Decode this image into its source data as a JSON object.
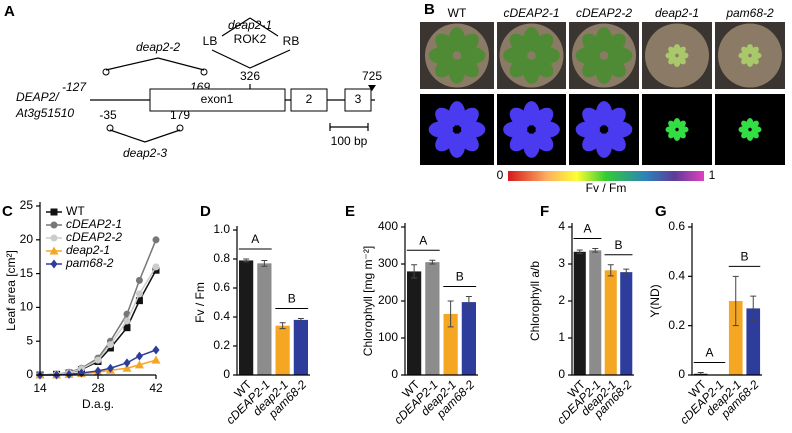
{
  "panel_a": {
    "label": "A",
    "allele_1": "deap2-1",
    "lb": "LB",
    "insert": "ROK2",
    "rb": "RB",
    "allele_2": "deap2-2",
    "pos_start": "-127",
    "pos_169": "169",
    "pos_326": "326",
    "pos_725": "725",
    "gene": "DEAP2/",
    "locus": "At3g51510",
    "exon1": "exon1",
    "exon2": "2",
    "exon3": "3",
    "pos_minus35": "-35",
    "pos_179": "179",
    "allele_3": "deap2-3",
    "scale": "100 bp"
  },
  "panel_b": {
    "label": "B",
    "genotypes": [
      "WT",
      "cDEAP2-1",
      "cDEAP2-2",
      "deap2-1",
      "pam68-2"
    ],
    "colorbar_min": "0",
    "colorbar_label": "Fv / Fm",
    "colorbar_max": "1"
  },
  "chart_data": [
    {
      "type": "line",
      "panel": "C",
      "xlabel": "D.a.g.",
      "ylabel": "Leaf area [cm²]",
      "x": [
        14,
        18,
        21,
        24,
        28,
        31,
        35,
        38,
        42
      ],
      "xlim": [
        14,
        42
      ],
      "xticks": [
        14,
        28,
        42
      ],
      "ylim": [
        0,
        25
      ],
      "yticks": [
        0,
        5,
        10,
        15,
        20,
        25
      ],
      "series": [
        {
          "name": "WT",
          "color": "#111111",
          "marker": "square",
          "values": [
            0,
            0.1,
            0.3,
            0.8,
            2,
            4,
            7,
            11,
            15.5
          ]
        },
        {
          "name": "cDEAP2-1",
          "color": "#777777",
          "marker": "circle",
          "values": [
            0,
            0.1,
            0.4,
            1,
            2.5,
            5,
            9,
            14,
            20
          ]
        },
        {
          "name": "cDEAP2-2",
          "color": "#cccccc",
          "marker": "circle",
          "values": [
            0,
            0.1,
            0.3,
            0.9,
            2.2,
            4.5,
            8,
            12,
            16
          ]
        },
        {
          "name": "deap2-1",
          "color": "#f5a623",
          "marker": "triangle",
          "values": [
            0,
            0,
            0.1,
            0.2,
            0.4,
            0.7,
            1,
            1.5,
            2.2
          ]
        },
        {
          "name": "pam68-2",
          "color": "#2e3d9c",
          "marker": "diamond",
          "values": [
            0,
            0,
            0.1,
            0.3,
            0.6,
            1,
            1.8,
            2.8,
            3.7
          ]
        }
      ]
    },
    {
      "type": "bar",
      "panel": "D",
      "ylabel": "Fv / Fm",
      "categories": [
        "WT",
        "cDEAP2-1",
        "deap2-1",
        "pam68-2"
      ],
      "values": [
        0.79,
        0.77,
        0.34,
        0.38
      ],
      "errors": [
        0.01,
        0.02,
        0.02,
        0.01
      ],
      "colors": [
        "#1a1a1a",
        "#8c8c8c",
        "#f5a623",
        "#2e3d9c"
      ],
      "ylim": [
        0,
        1
      ],
      "yticks": [
        0,
        0.2,
        0.4,
        0.6,
        0.8,
        {
          "value": 1,
          "label": "1.0"
        }
      ],
      "annotations": [
        "A",
        "B"
      ]
    },
    {
      "type": "bar",
      "panel": "E",
      "ylabel": "Chlorophyll [mg m⁻²]",
      "categories": [
        "WT",
        "cDEAP2-1",
        "deap2-1",
        "pam68-2"
      ],
      "values": [
        280,
        305,
        165,
        197
      ],
      "errors": [
        18,
        5,
        35,
        15
      ],
      "colors": [
        "#1a1a1a",
        "#8c8c8c",
        "#f5a623",
        "#2e3d9c"
      ],
      "ylim": [
        0,
        400
      ],
      "yticks": [
        0,
        100,
        200,
        300,
        400
      ],
      "annotations": [
        "A",
        "B"
      ]
    },
    {
      "type": "bar",
      "panel": "F",
      "ylabel": "Chlorophyll a/b",
      "categories": [
        "WT",
        "cDEAP2-1",
        "deap2-1",
        "pam68-2"
      ],
      "values": [
        3.33,
        3.37,
        2.83,
        2.78
      ],
      "errors": [
        0.05,
        0.05,
        0.15,
        0.08
      ],
      "colors": [
        "#1a1a1a",
        "#8c8c8c",
        "#f5a623",
        "#2e3d9c"
      ],
      "ylim": [
        0,
        4
      ],
      "yticks": [
        0,
        1,
        2,
        3,
        4
      ],
      "annotations": [
        "A",
        "B"
      ]
    },
    {
      "type": "bar",
      "panel": "G",
      "ylabel": "Y(ND)",
      "categories": [
        "WT",
        "cDEAP2-1",
        "deap2-1",
        "pam68-2"
      ],
      "values": [
        0.005,
        0,
        0.3,
        0.27
      ],
      "errors": [
        0.005,
        0,
        0.1,
        0.05
      ],
      "colors": [
        "#1a1a1a",
        "#8c8c8c",
        "#f5a623",
        "#2e3d9c"
      ],
      "ylim": [
        0,
        0.6
      ],
      "yticks": [
        0,
        0.2,
        0.4,
        0.6
      ],
      "annotations": [
        "A",
        "B"
      ]
    }
  ]
}
